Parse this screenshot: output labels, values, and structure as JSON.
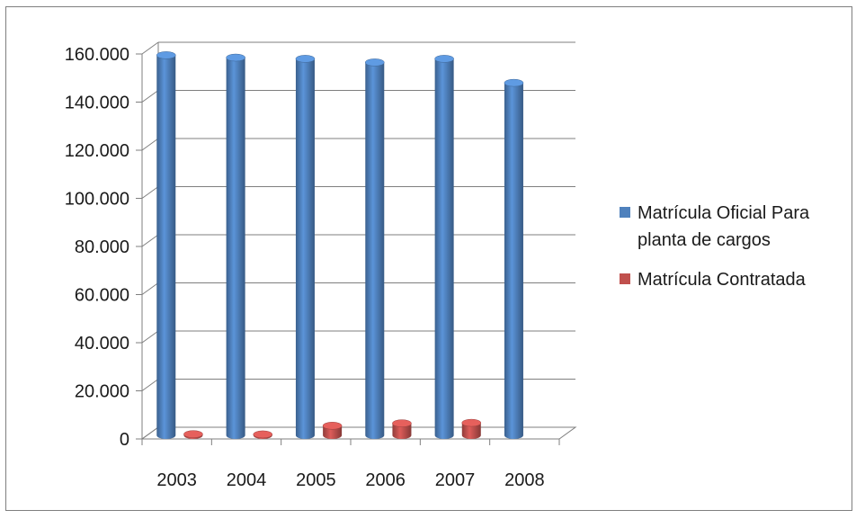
{
  "chart_data": {
    "type": "bar",
    "three_d": true,
    "categories": [
      "2003",
      "2004",
      "2005",
      "2006",
      "2007",
      "2008"
    ],
    "series": [
      {
        "name": "Matrícula Oficial Para planta de cargos",
        "color": "#4f81bd",
        "values": [
          158000,
          157000,
          156500,
          155000,
          156500,
          146500
        ]
      },
      {
        "name": "Matrícula Contratada",
        "color": "#c0504d",
        "values": [
          500,
          400,
          4000,
          5000,
          5200,
          0
        ]
      }
    ],
    "ylim": [
      0,
      160000
    ],
    "yticks": [
      "0",
      "20.000",
      "40.000",
      "60.000",
      "80.000",
      "100.000",
      "120.000",
      "140.000",
      "160.000"
    ],
    "ytick_values": [
      0,
      20000,
      40000,
      60000,
      80000,
      100000,
      120000,
      140000,
      160000
    ],
    "grid": true,
    "legend_position": "right"
  }
}
